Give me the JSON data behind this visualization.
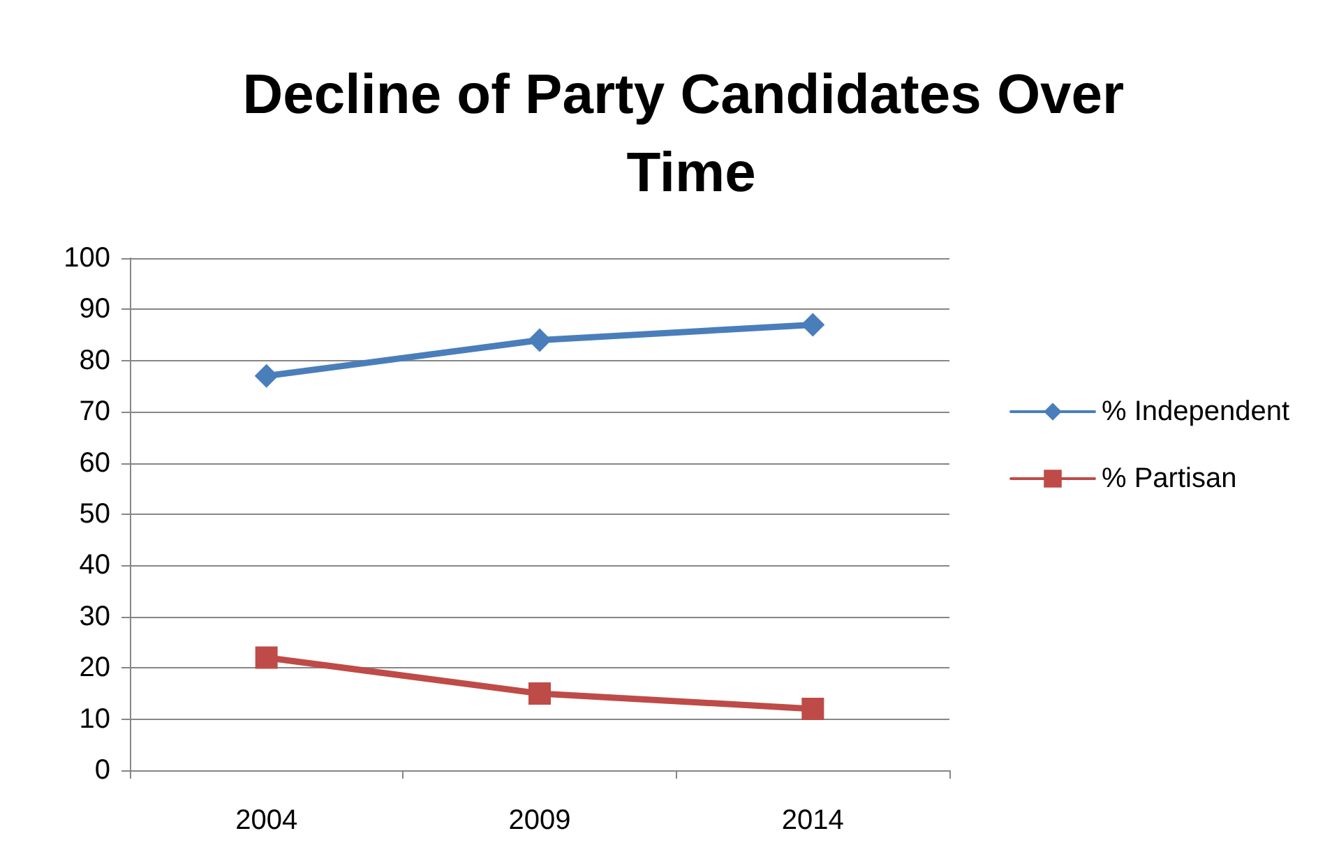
{
  "chart_data": {
    "type": "line",
    "title": "Decline of Party Candidates Over Time",
    "categories": [
      "2004",
      "2009",
      "2014"
    ],
    "series": [
      {
        "name": "% Independent",
        "color": "#4a7ebb",
        "marker": "diamond",
        "values": [
          77,
          84,
          87
        ]
      },
      {
        "name": "% Partisan",
        "color": "#be4b48",
        "marker": "square",
        "values": [
          22,
          15,
          12
        ]
      }
    ],
    "ylim": [
      0,
      100
    ],
    "yticks": [
      0,
      10,
      20,
      30,
      40,
      50,
      60,
      70,
      80,
      90,
      100
    ],
    "grid": "y",
    "legend": "right",
    "line_style": "solid"
  }
}
